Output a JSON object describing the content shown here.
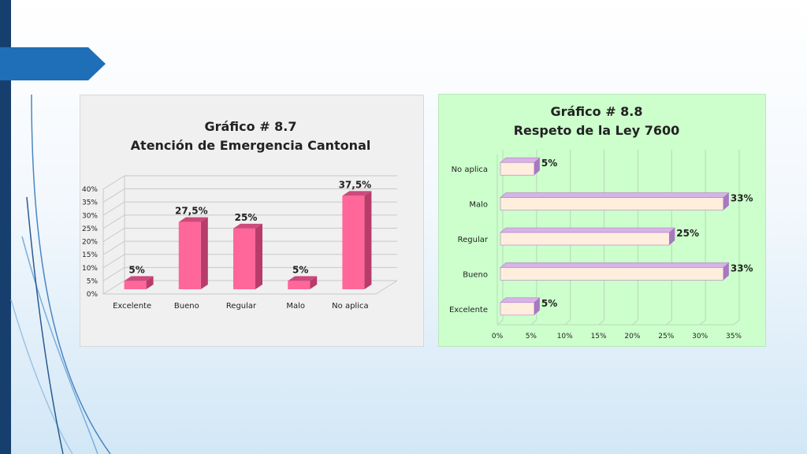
{
  "slide": {
    "accent_color": "#1e6fb8",
    "stripe_color": "#173f6e"
  },
  "chart_data": [
    {
      "type": "bar",
      "orientation": "vertical",
      "title_line1": "Gráfico # 8.7",
      "title_line2": "Atención de Emergencia Cantonal",
      "categories": [
        "Excelente",
        "Bueno",
        "Regular",
        "Malo",
        "No aplica"
      ],
      "values": [
        5,
        27.5,
        25,
        5,
        37.5
      ],
      "data_labels": [
        "5%",
        "27,5%",
        "25%",
        "5%",
        "37,5%"
      ],
      "ylim": [
        0,
        40
      ],
      "y_ticks": [
        "0%",
        "5%",
        "10%",
        "15%",
        "20%",
        "25%",
        "30%",
        "35%",
        "40%"
      ],
      "grid": true,
      "bar_color": "#ff6699",
      "background": "#f0f0f0"
    },
    {
      "type": "bar",
      "orientation": "horizontal",
      "title_line1": "Gráfico # 8.8",
      "title_line2": "Respeto de la Ley 7600",
      "categories": [
        "No aplica",
        "Malo",
        "Regular",
        "Bueno",
        "Excelente"
      ],
      "values": [
        5,
        33,
        25,
        33,
        5
      ],
      "data_labels": [
        "5%",
        "33%",
        "25%",
        "33%",
        "5%"
      ],
      "xlim": [
        0,
        35
      ],
      "x_ticks": [
        "0%",
        "5%",
        "10%",
        "15%",
        "20%",
        "25%",
        "30%",
        "35%"
      ],
      "grid": true,
      "bar_color": "#ffeedd",
      "bar_edge_color": "#b07ec8",
      "background": "#ccffcc"
    }
  ]
}
